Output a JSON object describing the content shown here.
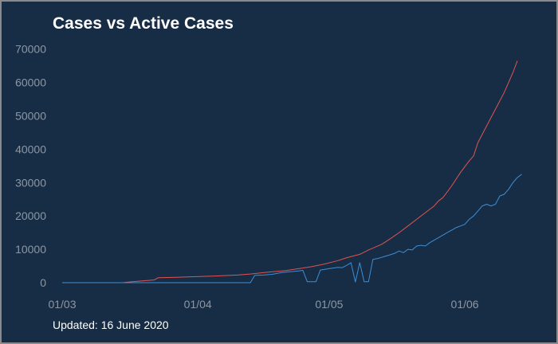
{
  "chart_data": {
    "type": "line",
    "title": "Cases vs Active Cases",
    "xlabel": "",
    "ylabel": "",
    "ylim": [
      0,
      72000
    ],
    "yticks": [
      0,
      10000,
      20000,
      30000,
      40000,
      50000,
      60000,
      70000
    ],
    "xticks": [
      {
        "label": "01/03",
        "day": 0
      },
      {
        "label": "01/04",
        "day": 31
      },
      {
        "label": "01/05",
        "day": 61
      },
      {
        "label": "01/06",
        "day": 92
      }
    ],
    "grid": false,
    "legend": "none",
    "series": [
      {
        "color": "#e05353",
        "points": [
          [
            0,
            0
          ],
          [
            10,
            10
          ],
          [
            14,
            30
          ],
          [
            15,
            200
          ],
          [
            18,
            500
          ],
          [
            21,
            800
          ],
          [
            22,
            1500
          ],
          [
            26,
            1600
          ],
          [
            30,
            1800
          ],
          [
            35,
            2000
          ],
          [
            40,
            2300
          ],
          [
            43,
            2600
          ],
          [
            46,
            3000
          ],
          [
            48,
            3300
          ],
          [
            51,
            3600
          ],
          [
            54,
            4200
          ],
          [
            57,
            4800
          ],
          [
            60,
            5600
          ],
          [
            63,
            6600
          ],
          [
            65,
            7500
          ],
          [
            68,
            8500
          ],
          [
            70,
            9800
          ],
          [
            73,
            11500
          ],
          [
            75,
            13200
          ],
          [
            77,
            15000
          ],
          [
            79,
            17000
          ],
          [
            81,
            19000
          ],
          [
            83,
            21000
          ],
          [
            85,
            23000
          ],
          [
            86,
            24500
          ],
          [
            87,
            25500
          ],
          [
            89,
            29000
          ],
          [
            91,
            33000
          ],
          [
            93,
            36500
          ],
          [
            94,
            38000
          ],
          [
            95,
            42000
          ],
          [
            97,
            47000
          ],
          [
            99,
            52000
          ],
          [
            101,
            57000
          ],
          [
            102,
            60000
          ],
          [
            103,
            63000
          ],
          [
            104,
            66500
          ]
        ]
      },
      {
        "color": "#3d8ed6",
        "points": [
          [
            0,
            0
          ],
          [
            10,
            0
          ],
          [
            20,
            0
          ],
          [
            30,
            0
          ],
          [
            40,
            0
          ],
          [
            43,
            0
          ],
          [
            44,
            2200
          ],
          [
            46,
            2300
          ],
          [
            48,
            2500
          ],
          [
            50,
            3000
          ],
          [
            52,
            3300
          ],
          [
            54,
            3500
          ],
          [
            55,
            3700
          ],
          [
            56,
            300
          ],
          [
            58,
            300
          ],
          [
            59,
            3800
          ],
          [
            61,
            4200
          ],
          [
            63,
            4600
          ],
          [
            64,
            4500
          ],
          [
            65,
            5200
          ],
          [
            66,
            6000
          ],
          [
            67,
            200
          ],
          [
            68,
            6000
          ],
          [
            69,
            300
          ],
          [
            70,
            300
          ],
          [
            71,
            7000
          ],
          [
            72,
            7200
          ],
          [
            74,
            8000
          ],
          [
            76,
            8800
          ],
          [
            77,
            9500
          ],
          [
            78,
            9000
          ],
          [
            79,
            10000
          ],
          [
            80,
            9800
          ],
          [
            81,
            11000
          ],
          [
            82,
            11200
          ],
          [
            83,
            11000
          ],
          [
            84,
            12000
          ],
          [
            86,
            13500
          ],
          [
            88,
            15000
          ],
          [
            90,
            16500
          ],
          [
            91,
            17000
          ],
          [
            92,
            17500
          ],
          [
            93,
            19000
          ],
          [
            94,
            20000
          ],
          [
            95,
            21500
          ],
          [
            96,
            23000
          ],
          [
            97,
            23500
          ],
          [
            98,
            23000
          ],
          [
            99,
            23500
          ],
          [
            100,
            26000
          ],
          [
            101,
            26500
          ],
          [
            102,
            28000
          ],
          [
            103,
            30000
          ],
          [
            104,
            31500
          ],
          [
            105,
            32500
          ]
        ]
      }
    ]
  },
  "footer": {
    "updated": "Updated: 16 June 2020"
  }
}
